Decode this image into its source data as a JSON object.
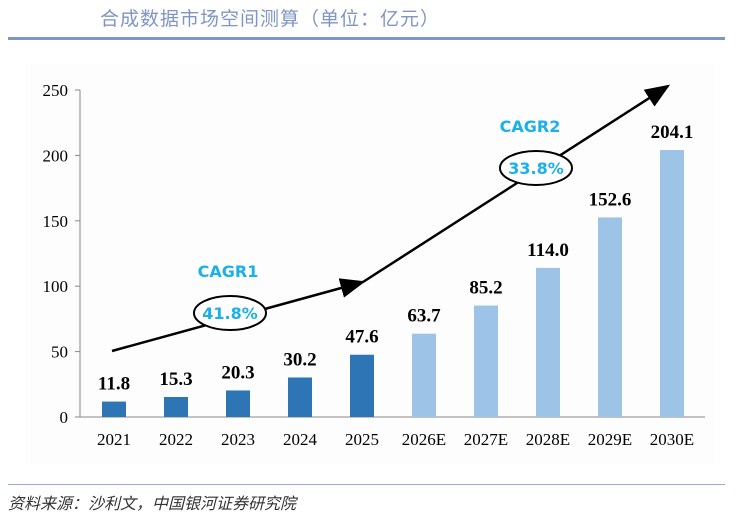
{
  "title": "合成数据市场空间测算（单位：亿元）",
  "source": "资料来源：沙利文，中国银河证券研究院",
  "chart_data": {
    "type": "bar",
    "categories": [
      "2021",
      "2022",
      "2023",
      "2024",
      "2025",
      "2026E",
      "2027E",
      "2028E",
      "2029E",
      "2030E"
    ],
    "values": [
      11.8,
      15.3,
      20.3,
      30.2,
      47.6,
      63.7,
      85.2,
      114.0,
      152.6,
      204.1
    ],
    "value_labels": [
      "11.8",
      "15.3",
      "20.3",
      "30.2",
      "47.6",
      "63.7",
      "85.2",
      "114.0",
      "152.6",
      "204.1"
    ],
    "ylim": [
      0,
      250
    ],
    "yticks": [
      "0",
      "50",
      "100",
      "150",
      "200",
      "250"
    ],
    "colors": {
      "actual": "#2e75b6",
      "forecast": "#9dc3e6",
      "annotation": "#1ab0ea"
    },
    "annotations": [
      {
        "label": "CAGR1",
        "value": "41.8%"
      },
      {
        "label": "CAGR2",
        "value": "33.8%"
      }
    ],
    "grid": false
  }
}
